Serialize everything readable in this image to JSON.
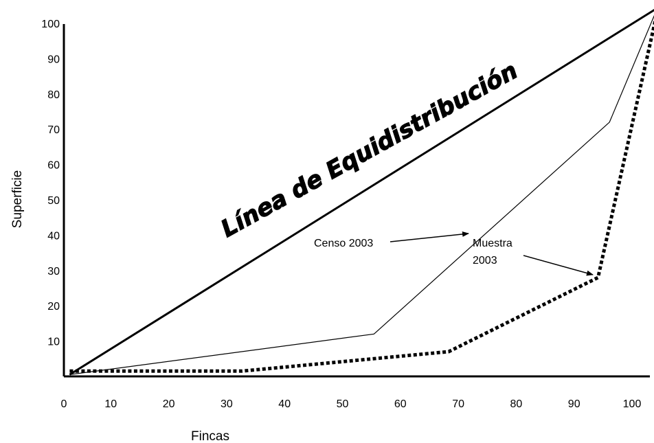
{
  "chart_data": {
    "type": "line",
    "xlabel": "Fincas",
    "ylabel": "Superficie",
    "xlim": [
      0,
      103
    ],
    "ylim": [
      0,
      105
    ],
    "x_ticks": [
      "0",
      "10",
      "20",
      "30",
      "40",
      "50",
      "60",
      "70",
      "80",
      "90",
      "100"
    ],
    "y_ticks": [
      "10",
      "20",
      "30",
      "40",
      "50",
      "60",
      "70",
      "80",
      "90",
      "100"
    ],
    "grid": false,
    "legend": "none",
    "series": [
      {
        "name": "Línea de Equidistribución",
        "style": "solid-thick",
        "points": [
          [
            1,
            0.5
          ],
          [
            103,
            104
          ]
        ]
      },
      {
        "name": "Censo 2003",
        "style": "solid-thin",
        "points": [
          [
            1,
            0.5
          ],
          [
            54,
            12
          ],
          [
            95,
            72
          ],
          [
            103,
            103
          ]
        ]
      },
      {
        "name": "Muestra 2003",
        "style": "dotted-thick",
        "points": [
          [
            1,
            1.5
          ],
          [
            31,
            1.5
          ],
          [
            67,
            7
          ],
          [
            93,
            28
          ],
          [
            103,
            101
          ]
        ]
      }
    ],
    "annotations": [
      {
        "text": "Censo 2003",
        "arrow_to": [
          73,
          41
        ]
      },
      {
        "text": "Muestra 2003",
        "lines": [
          "Muestra",
          "2003"
        ],
        "arrow_to": [
          93,
          29
        ]
      }
    ],
    "colors": {
      "line": "#000000",
      "background": "#ffffff"
    }
  }
}
